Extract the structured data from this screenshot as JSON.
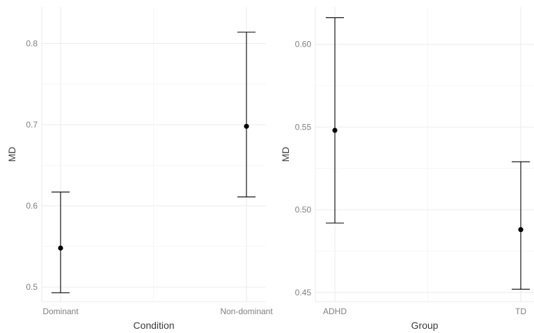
{
  "chart_data": [
    {
      "type": "scatter",
      "subtype": "point-with-error-bars",
      "title": "",
      "xlabel": "Condition",
      "ylabel": "MD",
      "categories": [
        "Dominant",
        "Non-dominant"
      ],
      "values": [
        0.548,
        0.698
      ],
      "ci_low": [
        0.493,
        0.611
      ],
      "ci_high": [
        0.617,
        0.814
      ],
      "ylim": [
        0.482,
        0.845
      ],
      "yticks": [
        0.5,
        0.6,
        0.7,
        0.8
      ],
      "ytick_labels": [
        "0.5",
        "0.6",
        "0.7",
        "0.8"
      ],
      "grid": true,
      "legend": "none"
    },
    {
      "type": "scatter",
      "subtype": "point-with-error-bars",
      "title": "",
      "xlabel": "Group",
      "ylabel": "MD",
      "categories": [
        "ADHD",
        "TD"
      ],
      "values": [
        0.548,
        0.488
      ],
      "ci_low": [
        0.492,
        0.452
      ],
      "ci_high": [
        0.616,
        0.529
      ],
      "ylim": [
        0.4445,
        0.6225
      ],
      "yticks": [
        0.45,
        0.5,
        0.55,
        0.6
      ],
      "ytick_labels": [
        "0.45",
        "0.50",
        "0.55",
        "0.60"
      ],
      "grid": true,
      "legend": "none"
    }
  ]
}
